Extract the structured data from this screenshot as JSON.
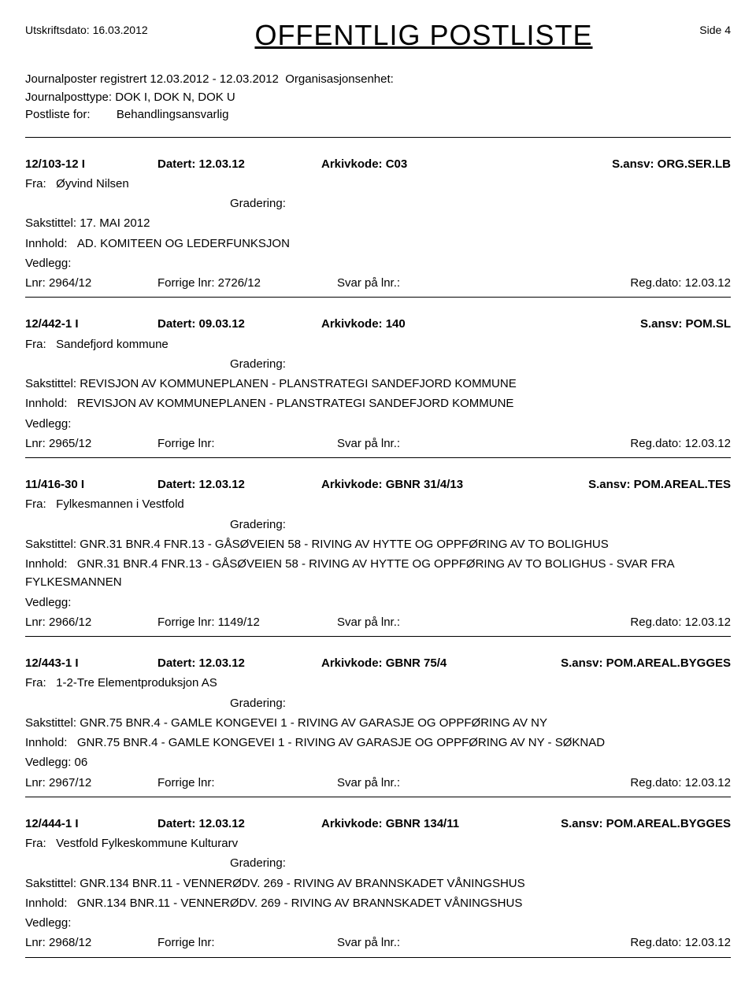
{
  "header": {
    "print_date_label": "Utskriftsdato:",
    "print_date": "16.03.2012",
    "title": "OFFENTLIG POSTLISTE",
    "side_label": "Side",
    "side_number": "4"
  },
  "meta": {
    "line1_label": "Journalposter registrert",
    "line1_range": "12.03.2012 - 12.03.2012",
    "line1_org_label": "Organisasjonsenhet:",
    "line2_label": "Journalposttype:",
    "line2_value": "DOK I, DOK N, DOK U",
    "line3_label": "Postliste for:",
    "line3_value": "Behandlingsansvarlig"
  },
  "labels": {
    "datert": "Datert:",
    "arkivkode": "Arkivkode:",
    "sansv": "S.ansv:",
    "fra": "Fra:",
    "gradering": "Gradering:",
    "sakstittel": "Sakstittel:",
    "innhold": "Innhold:",
    "vedlegg": "Vedlegg:",
    "lnr": "Lnr:",
    "forrige_lnr": "Forrige lnr:",
    "svar_pa_lnr": "Svar på lnr.:",
    "regdato": "Reg.dato:"
  },
  "entries": [
    {
      "id": "12/103-12  I",
      "datert": "12.03.12",
      "arkivkode": "C03",
      "sansv": "ORG.SER.LB",
      "fra": "Øyvind Nilsen",
      "sakstittel": "17. MAI 2012",
      "innhold": "AD. KOMITEEN OG LEDERFUNKSJON",
      "vedlegg": "",
      "lnr": "2964/12",
      "forrige_lnr": "2726/12",
      "svar_pa_lnr": "",
      "regdato": "12.03.12"
    },
    {
      "id": "12/442-1  I",
      "datert": "09.03.12",
      "arkivkode": "140",
      "sansv": "POM.SL",
      "fra": "Sandefjord kommune",
      "sakstittel": "REVISJON AV KOMMUNEPLANEN - PLANSTRATEGI SANDEFJORD KOMMUNE",
      "innhold": "REVISJON AV KOMMUNEPLANEN - PLANSTRATEGI SANDEFJORD KOMMUNE",
      "vedlegg": "",
      "lnr": "2965/12",
      "forrige_lnr": "",
      "svar_pa_lnr": "",
      "regdato": "12.03.12"
    },
    {
      "id": "11/416-30  I",
      "datert": "12.03.12",
      "arkivkode": "GBNR 31/4/13",
      "sansv": "POM.AREAL.TES",
      "fra": "Fylkesmannen i Vestfold",
      "sakstittel": "GNR.31 BNR.4 FNR.13 - GÅSØVEIEN 58 - RIVING AV HYTTE OG OPPFØRING  AV TO BOLIGHUS",
      "innhold": "GNR.31 BNR.4 FNR.13 - GÅSØVEIEN 58 - RIVING AV HYTTE OG OPPFØRING  AV TO BOLIGHUS - SVAR FRA FYLKESMANNEN",
      "vedlegg": "",
      "lnr": "2966/12",
      "forrige_lnr": "1149/12",
      "svar_pa_lnr": "",
      "regdato": "12.03.12"
    },
    {
      "id": "12/443-1  I",
      "datert": "12.03.12",
      "arkivkode": "GBNR 75/4",
      "sansv": "POM.AREAL.BYGGES",
      "fra": "1-2-Tre Elementproduksjon AS",
      "sakstittel": "GNR.75 BNR.4 - GAMLE KONGEVEI 1 - RIVING  AV GARASJE OG OPPFØRING  AV NY",
      "innhold": "GNR.75 BNR.4 - GAMLE KONGEVEI 1 - RIVING  AV GARASJE OG OPPFØRING  AV NY - SØKNAD",
      "vedlegg": "06",
      "lnr": "2967/12",
      "forrige_lnr": "",
      "svar_pa_lnr": "",
      "regdato": "12.03.12"
    },
    {
      "id": "12/444-1  I",
      "datert": "12.03.12",
      "arkivkode": "GBNR 134/11",
      "sansv": "POM.AREAL.BYGGES",
      "fra": "Vestfold Fylkeskommune Kulturarv",
      "sakstittel": "GNR.134 BNR.11 - VENNERØDV. 269 - RIVING AV BRANNSKADET VÅNINGSHUS",
      "innhold": "GNR.134 BNR.11 - VENNERØDV. 269 - RIVING AV BRANNSKADET VÅNINGSHUS",
      "vedlegg": "",
      "lnr": "2968/12",
      "forrige_lnr": "",
      "svar_pa_lnr": "",
      "regdato": "12.03.12"
    }
  ]
}
